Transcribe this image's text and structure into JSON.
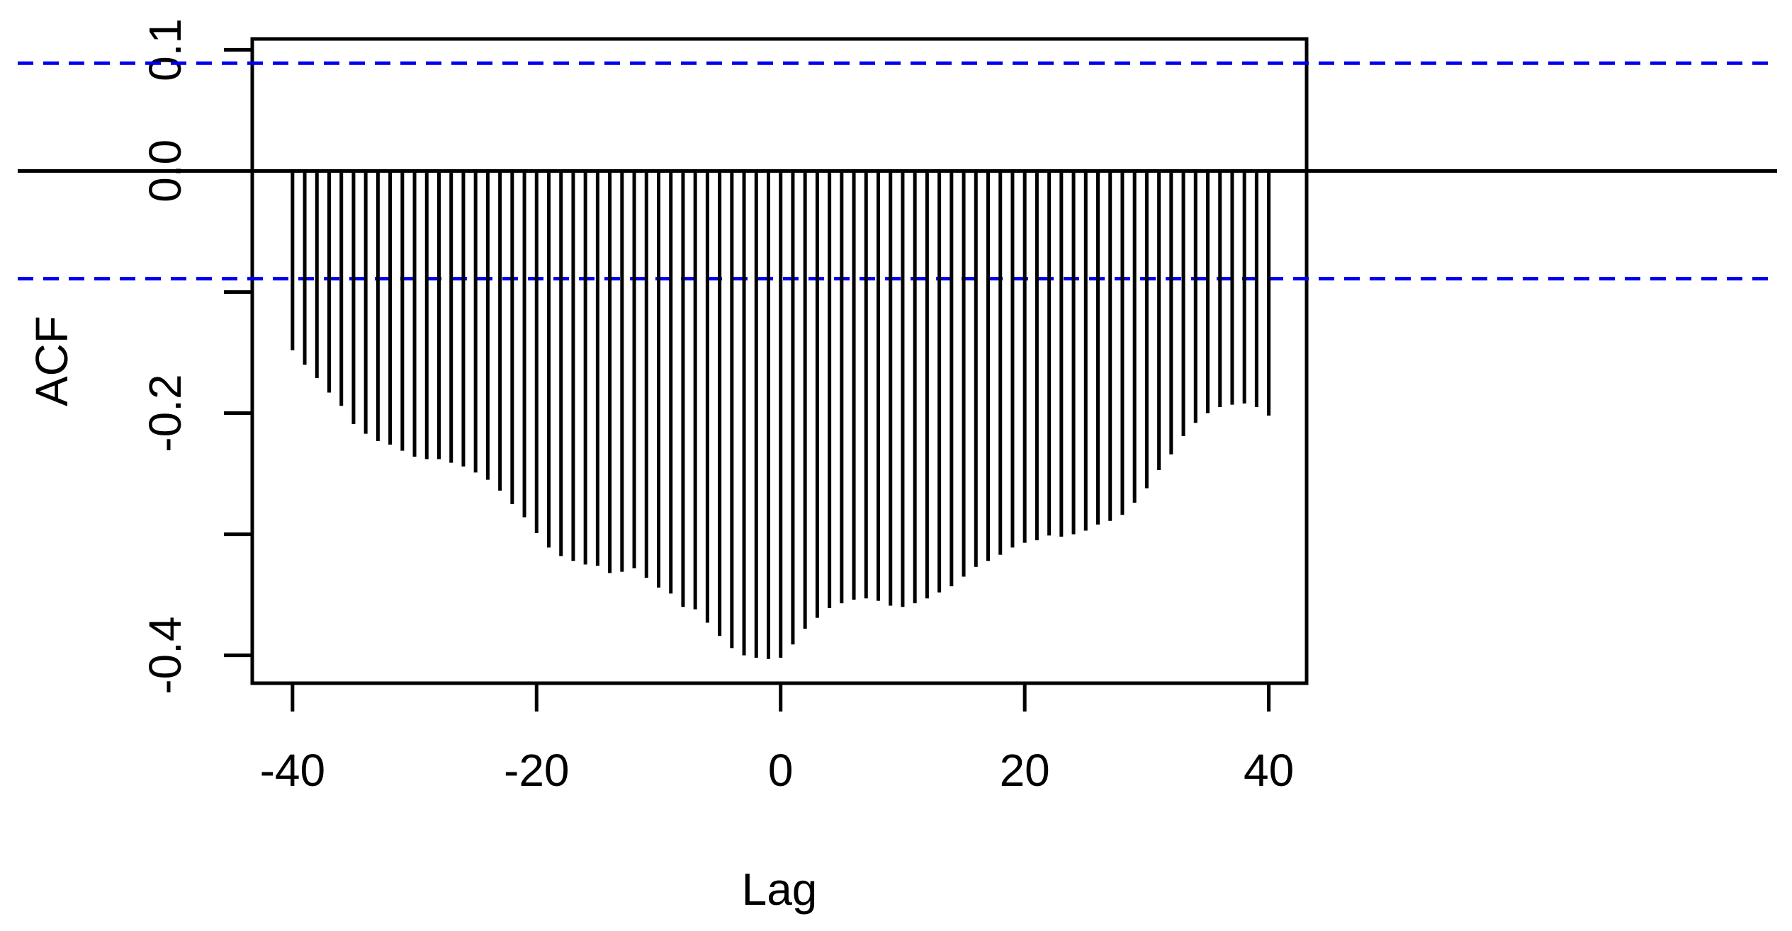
{
  "chart_data": {
    "type": "acf",
    "xlabel": "Lag",
    "ylabel": "ACF",
    "x": [
      -40,
      -39,
      -38,
      -37,
      -36,
      -35,
      -34,
      -33,
      -32,
      -31,
      -30,
      -29,
      -28,
      -27,
      -26,
      -25,
      -24,
      -23,
      -22,
      -21,
      -20,
      -19,
      -18,
      -17,
      -16,
      -15,
      -14,
      -13,
      -12,
      -11,
      -10,
      -9,
      -8,
      -7,
      -6,
      -5,
      -4,
      -3,
      -2,
      -1,
      0,
      1,
      2,
      3,
      4,
      5,
      6,
      7,
      8,
      9,
      10,
      11,
      12,
      13,
      14,
      15,
      16,
      17,
      18,
      19,
      20,
      21,
      22,
      23,
      24,
      25,
      26,
      27,
      28,
      29,
      30,
      31,
      32,
      33,
      34,
      35,
      36,
      37,
      38,
      39,
      40
    ],
    "values": [
      -0.148,
      -0.16,
      -0.171,
      -0.183,
      -0.194,
      -0.209,
      -0.217,
      -0.223,
      -0.226,
      -0.231,
      -0.236,
      -0.238,
      -0.238,
      -0.241,
      -0.244,
      -0.249,
      -0.255,
      -0.264,
      -0.275,
      -0.286,
      -0.299,
      -0.311,
      -0.318,
      -0.322,
      -0.325,
      -0.326,
      -0.332,
      -0.331,
      -0.328,
      -0.336,
      -0.344,
      -0.349,
      -0.36,
      -0.362,
      -0.373,
      -0.384,
      -0.394,
      -0.4,
      -0.402,
      -0.403,
      -0.402,
      -0.391,
      -0.378,
      -0.369,
      -0.361,
      -0.357,
      -0.354,
      -0.353,
      -0.355,
      -0.359,
      -0.36,
      -0.357,
      -0.353,
      -0.348,
      -0.343,
      -0.335,
      -0.327,
      -0.322,
      -0.317,
      -0.311,
      -0.307,
      -0.305,
      -0.301,
      -0.302,
      -0.3,
      -0.297,
      -0.292,
      -0.289,
      -0.284,
      -0.274,
      -0.262,
      -0.247,
      -0.234,
      -0.219,
      -0.208,
      -0.2,
      -0.195,
      -0.193,
      -0.192,
      -0.195,
      -0.202
    ],
    "color": "#000000",
    "ci": 0.089,
    "ci_color": "#0000ee",
    "xlim": [
      -43.3,
      43.1
    ],
    "xticks": [
      -40,
      -20,
      0,
      20,
      40
    ],
    "ylim": [
      -0.423,
      0.109
    ],
    "yticks": [
      {
        "value": 0.1,
        "label": "0.1"
      },
      {
        "value": 0,
        "label": "0.0"
      },
      {
        "value": -0.1,
        "label": null
      },
      {
        "value": -0.2,
        "label": "-0.2"
      },
      {
        "value": -0.3,
        "label": null
      },
      {
        "value": -0.4,
        "label": "-0.4"
      }
    ]
  }
}
